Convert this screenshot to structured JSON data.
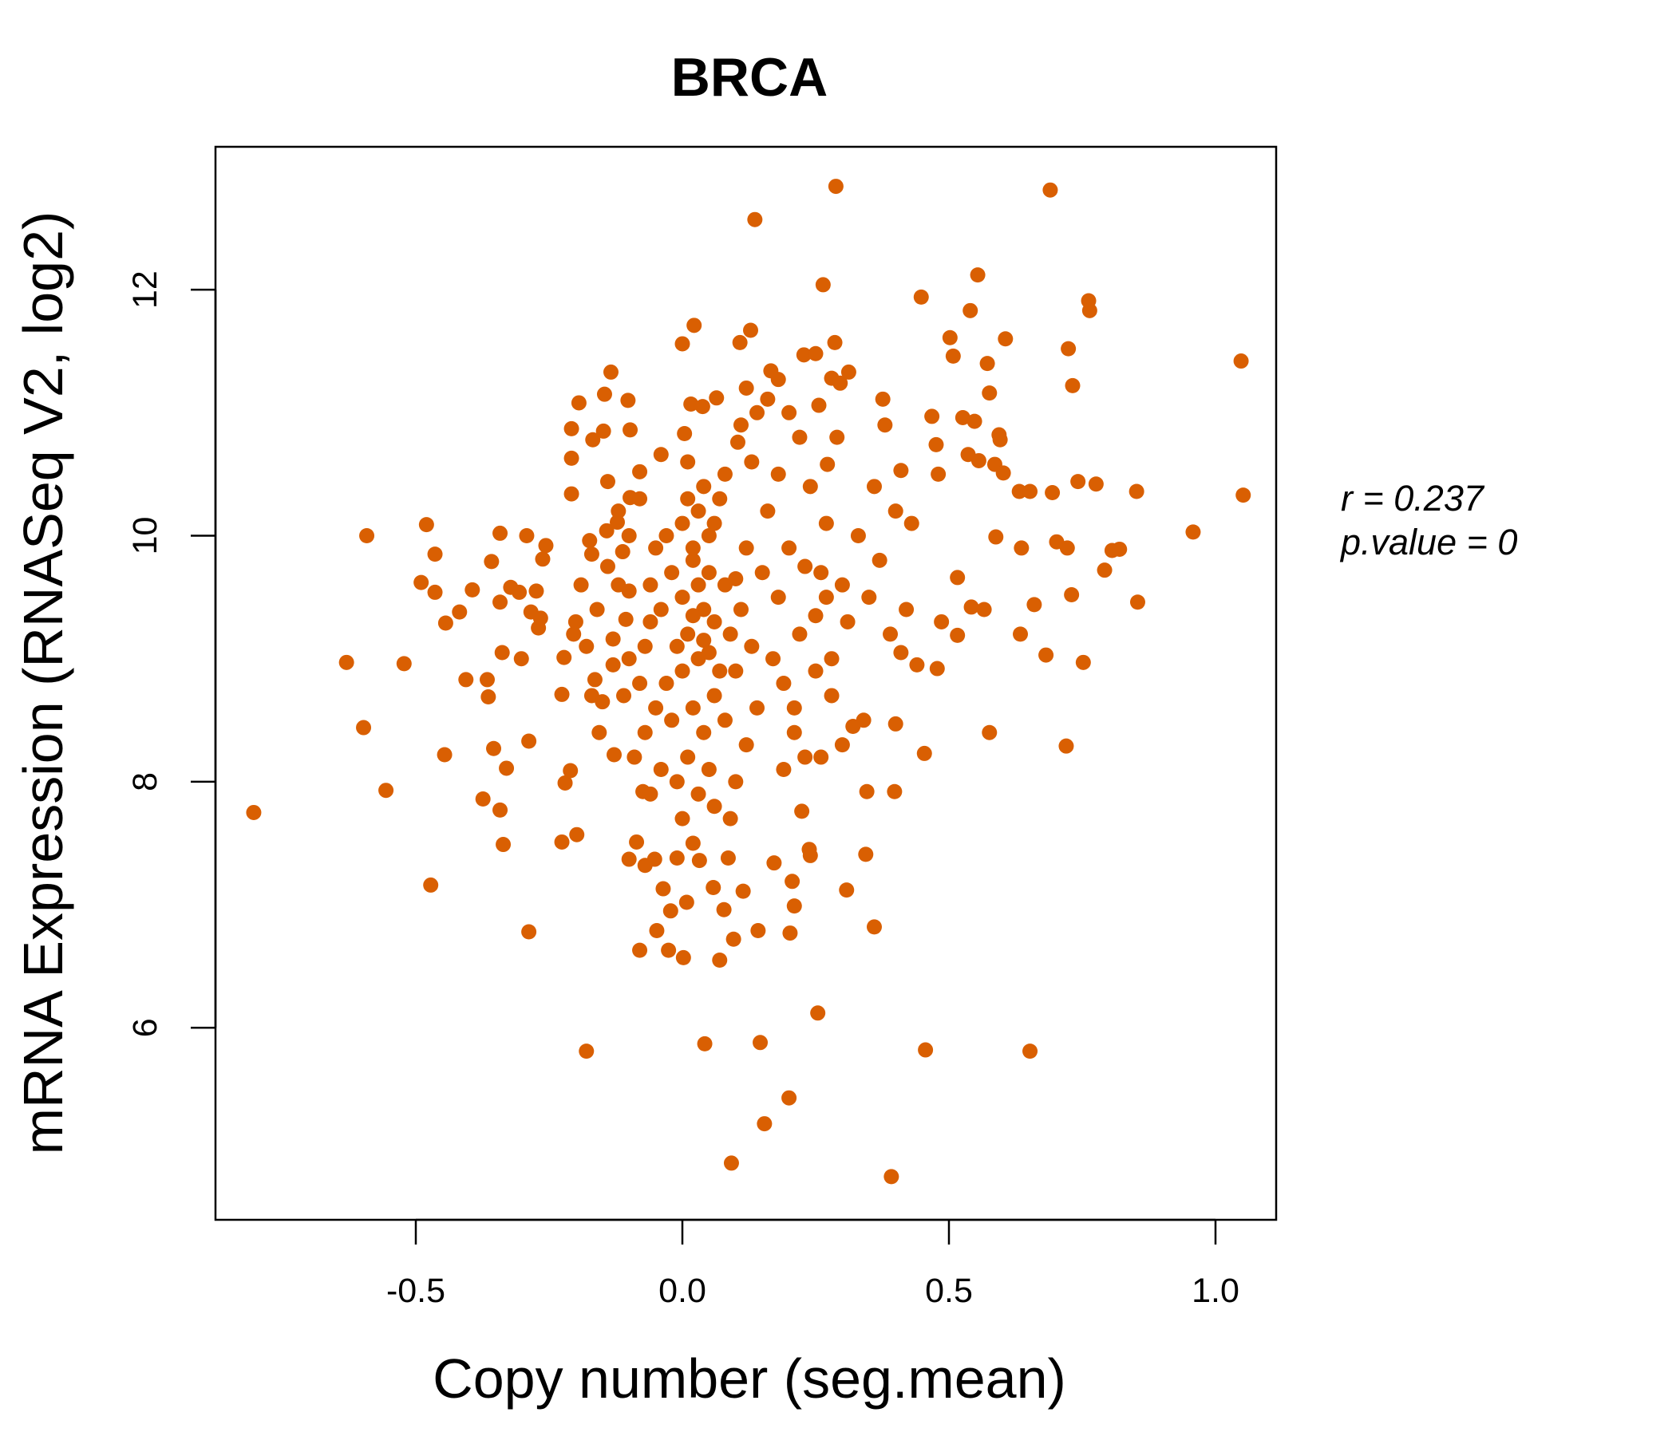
{
  "chart_data": {
    "type": "scatter",
    "title": "BRCA",
    "xlabel": "Copy number (seg.mean)",
    "ylabel": "mRNA Expression (RNASeq V2, log2)",
    "xlim": [
      -0.87,
      1.13
    ],
    "ylim": [
      4.65,
      13.0
    ],
    "xticks": [
      -0.5,
      0.0,
      0.5,
      1.0
    ],
    "xtick_labels": [
      "-0.5",
      "0.0",
      "0.5",
      "1.0"
    ],
    "yticks": [
      6,
      8,
      10,
      12
    ],
    "ytick_labels": [
      "6",
      "8",
      "10",
      "12"
    ],
    "grid": false,
    "point_color": "#D95F02",
    "title_color": "#D95F02",
    "annotations": {
      "r_label": "r = 0.237",
      "p_label": "p.value = 0"
    },
    "points": [
      [
        -0.804,
        7.75
      ],
      [
        -0.63,
        8.97
      ],
      [
        -0.598,
        8.44
      ],
      [
        -0.592,
        10.0
      ],
      [
        -0.556,
        7.93
      ],
      [
        -0.522,
        8.96
      ],
      [
        -0.49,
        9.62
      ],
      [
        -0.48,
        10.09
      ],
      [
        -0.472,
        7.16
      ],
      [
        -0.464,
        9.85
      ],
      [
        -0.464,
        9.54
      ],
      [
        -0.446,
        8.22
      ],
      [
        -0.444,
        9.29
      ],
      [
        -0.418,
        9.38
      ],
      [
        -0.406,
        8.83
      ],
      [
        -0.394,
        9.56
      ],
      [
        -0.374,
        7.86
      ],
      [
        -0.366,
        8.83
      ],
      [
        -0.364,
        8.69
      ],
      [
        -0.358,
        9.79
      ],
      [
        -0.354,
        8.27
      ],
      [
        -0.342,
        10.02
      ],
      [
        -0.342,
        9.46
      ],
      [
        -0.342,
        7.77
      ],
      [
        -0.338,
        9.05
      ],
      [
        -0.336,
        7.49
      ],
      [
        -0.33,
        8.11
      ],
      [
        -0.322,
        9.58
      ],
      [
        -0.306,
        9.54
      ],
      [
        -0.302,
        9.0
      ],
      [
        -0.292,
        10.0
      ],
      [
        -0.288,
        8.33
      ],
      [
        -0.288,
        6.78
      ],
      [
        -0.284,
        9.38
      ],
      [
        -0.274,
        9.55
      ],
      [
        -0.27,
        9.25
      ],
      [
        -0.266,
        9.33
      ],
      [
        -0.262,
        9.81
      ],
      [
        -0.256,
        9.92
      ],
      [
        -0.226,
        8.71
      ],
      [
        -0.226,
        7.51
      ],
      [
        -0.222,
        9.01
      ],
      [
        -0.22,
        7.99
      ],
      [
        -0.21,
        8.09
      ],
      [
        -0.208,
        10.87
      ],
      [
        -0.208,
        10.34
      ],
      [
        -0.208,
        10.63
      ],
      [
        -0.204,
        9.2
      ],
      [
        -0.198,
        7.57
      ],
      [
        -0.194,
        11.08
      ],
      [
        -0.19,
        9.6
      ],
      [
        -0.18,
        5.81
      ],
      [
        -0.174,
        9.96
      ],
      [
        -0.17,
        8.7
      ],
      [
        -0.168,
        10.78
      ],
      [
        -0.164,
        8.83
      ],
      [
        -0.156,
        8.4
      ],
      [
        -0.148,
        10.85
      ],
      [
        -0.146,
        11.15
      ],
      [
        -0.142,
        10.04
      ],
      [
        -0.14,
        10.44
      ],
      [
        -0.134,
        11.33
      ],
      [
        -0.13,
        9.16
      ],
      [
        -0.128,
        8.22
      ],
      [
        -0.122,
        10.11
      ],
      [
        -0.112,
        9.87
      ],
      [
        -0.106,
        9.32
      ],
      [
        -0.102,
        11.1
      ],
      [
        -0.1,
        7.37
      ],
      [
        -0.098,
        10.86
      ],
      [
        -0.098,
        10.31
      ],
      [
        -0.086,
        7.51
      ],
      [
        -0.08,
        10.52
      ],
      [
        -0.08,
        6.63
      ],
      [
        -0.074,
        7.92
      ],
      [
        -0.07,
        7.32
      ],
      [
        -0.052,
        7.37
      ],
      [
        -0.048,
        6.79
      ],
      [
        -0.04,
        10.66
      ],
      [
        -0.036,
        7.13
      ],
      [
        -0.026,
        6.63
      ],
      [
        -0.022,
        6.95
      ],
      [
        -0.01,
        7.38
      ],
      [
        0.0,
        11.56
      ],
      [
        0.002,
        6.57
      ],
      [
        0.004,
        10.83
      ],
      [
        0.008,
        7.02
      ],
      [
        0.016,
        11.07
      ],
      [
        0.022,
        11.71
      ],
      [
        0.032,
        7.36
      ],
      [
        0.038,
        11.05
      ],
      [
        0.042,
        5.87
      ],
      [
        0.058,
        7.14
      ],
      [
        0.064,
        11.12
      ],
      [
        0.07,
        6.55
      ],
      [
        0.078,
        6.96
      ],
      [
        0.086,
        7.38
      ],
      [
        0.092,
        4.9
      ],
      [
        0.096,
        6.72
      ],
      [
        0.104,
        10.76
      ],
      [
        0.108,
        11.57
      ],
      [
        0.114,
        7.11
      ],
      [
        0.12,
        11.2
      ],
      [
        0.128,
        11.67
      ],
      [
        0.136,
        12.57
      ],
      [
        0.142,
        6.79
      ],
      [
        0.146,
        5.88
      ],
      [
        0.154,
        5.22
      ],
      [
        0.16,
        11.11
      ],
      [
        0.166,
        11.34
      ],
      [
        0.172,
        7.34
      ],
      [
        0.18,
        11.27
      ],
      [
        0.2,
        5.43
      ],
      [
        0.202,
        6.77
      ],
      [
        0.206,
        7.19
      ],
      [
        0.21,
        6.99
      ],
      [
        0.224,
        7.76
      ],
      [
        0.228,
        11.47
      ],
      [
        0.238,
        7.45
      ],
      [
        0.25,
        11.48
      ],
      [
        0.254,
        6.12
      ],
      [
        0.256,
        11.06
      ],
      [
        0.264,
        12.04
      ],
      [
        0.272,
        10.58
      ],
      [
        0.28,
        11.28
      ],
      [
        0.286,
        11.57
      ],
      [
        0.288,
        12.84
      ],
      [
        0.296,
        11.24
      ],
      [
        0.308,
        7.12
      ],
      [
        0.312,
        11.33
      ],
      [
        0.344,
        7.41
      ],
      [
        0.346,
        7.92
      ],
      [
        0.36,
        6.82
      ],
      [
        0.376,
        11.11
      ],
      [
        0.392,
        4.79
      ],
      [
        0.398,
        7.92
      ],
      [
        0.4,
        8.47
      ],
      [
        0.41,
        10.53
      ],
      [
        0.448,
        11.94
      ],
      [
        0.454,
        8.23
      ],
      [
        0.456,
        5.82
      ],
      [
        0.468,
        10.97
      ],
      [
        0.476,
        10.74
      ],
      [
        0.478,
        8.92
      ],
      [
        0.48,
        10.5
      ],
      [
        0.486,
        9.3
      ],
      [
        0.502,
        11.61
      ],
      [
        0.508,
        11.46
      ],
      [
        0.516,
        9.19
      ],
      [
        0.516,
        9.66
      ],
      [
        0.526,
        10.96
      ],
      [
        0.536,
        10.66
      ],
      [
        0.54,
        11.83
      ],
      [
        0.542,
        9.42
      ],
      [
        0.548,
        10.93
      ],
      [
        0.554,
        12.12
      ],
      [
        0.556,
        10.61
      ],
      [
        0.566,
        9.4
      ],
      [
        0.572,
        11.4
      ],
      [
        0.576,
        11.16
      ],
      [
        0.576,
        8.4
      ],
      [
        0.586,
        10.58
      ],
      [
        0.588,
        9.99
      ],
      [
        0.594,
        10.82
      ],
      [
        0.596,
        10.78
      ],
      [
        0.602,
        10.51
      ],
      [
        0.606,
        11.6
      ],
      [
        0.632,
        10.36
      ],
      [
        0.634,
        9.2
      ],
      [
        0.636,
        9.9
      ],
      [
        0.652,
        10.36
      ],
      [
        0.652,
        5.81
      ],
      [
        0.66,
        9.44
      ],
      [
        0.682,
        9.03
      ],
      [
        0.69,
        12.81
      ],
      [
        0.694,
        10.35
      ],
      [
        0.702,
        9.95
      ],
      [
        0.72,
        8.29
      ],
      [
        0.722,
        9.9
      ],
      [
        0.724,
        11.52
      ],
      [
        0.73,
        9.52
      ],
      [
        0.732,
        11.22
      ],
      [
        0.742,
        10.44
      ],
      [
        0.752,
        8.97
      ],
      [
        0.762,
        11.91
      ],
      [
        0.764,
        11.83
      ],
      [
        0.776,
        10.42
      ],
      [
        0.792,
        9.72
      ],
      [
        0.806,
        9.88
      ],
      [
        0.82,
        9.89
      ],
      [
        0.852,
        10.36
      ],
      [
        0.854,
        9.46
      ],
      [
        0.958,
        10.03
      ],
      [
        1.048,
        11.42
      ],
      [
        1.052,
        10.33
      ],
      [
        0.0,
        9.5
      ],
      [
        0.01,
        9.2
      ],
      [
        0.02,
        9.8
      ],
      [
        0.03,
        9.0
      ],
      [
        0.04,
        9.4
      ],
      [
        0.05,
        10.0
      ],
      [
        0.06,
        9.3
      ],
      [
        0.07,
        8.9
      ],
      [
        -0.01,
        9.1
      ],
      [
        -0.02,
        9.7
      ],
      [
        -0.03,
        8.8
      ],
      [
        0.0,
        10.1
      ],
      [
        0.02,
        8.6
      ],
      [
        0.04,
        8.4
      ],
      [
        0.06,
        8.7
      ],
      [
        0.08,
        9.6
      ],
      [
        0.09,
        9.2
      ],
      [
        0.1,
        8.9
      ],
      [
        0.01,
        10.3
      ],
      [
        0.03,
        10.2
      ],
      [
        -0.04,
        9.4
      ],
      [
        -0.05,
        9.9
      ],
      [
        0.05,
        9.7
      ],
      [
        0.07,
        10.3
      ],
      [
        0.08,
        8.5
      ],
      [
        0.11,
        9.4
      ],
      [
        0.12,
        9.9
      ],
      [
        0.02,
        9.35
      ],
      [
        0.03,
        9.6
      ],
      [
        0.0,
        8.9
      ],
      [
        -0.02,
        8.5
      ],
      [
        0.01,
        8.2
      ],
      [
        0.05,
        8.1
      ],
      [
        0.03,
        7.9
      ],
      [
        0.0,
        7.7
      ],
      [
        0.02,
        7.5
      ],
      [
        0.06,
        7.8
      ],
      [
        -0.01,
        8.0
      ],
      [
        0.04,
        9.15
      ],
      [
        0.05,
        9.05
      ],
      [
        0.02,
        9.9
      ],
      [
        0.06,
        10.1
      ],
      [
        0.04,
        10.4
      ],
      [
        0.01,
        10.6
      ],
      [
        0.08,
        10.5
      ],
      [
        -0.03,
        10.0
      ],
      [
        -0.06,
        9.6
      ],
      [
        -0.07,
        9.1
      ],
      [
        -0.08,
        8.8
      ],
      [
        -0.06,
        9.3
      ],
      [
        0.1,
        9.65
      ],
      [
        0.13,
        9.1
      ],
      [
        0.14,
        8.6
      ],
      [
        0.15,
        9.7
      ],
      [
        0.16,
        10.2
      ],
      [
        0.13,
        10.6
      ],
      [
        0.12,
        8.3
      ],
      [
        0.1,
        8.0
      ],
      [
        0.09,
        7.7
      ],
      [
        0.11,
        10.9
      ],
      [
        0.14,
        11.0
      ],
      [
        0.18,
        9.5
      ],
      [
        0.2,
        9.9
      ],
      [
        0.22,
        9.2
      ],
      [
        0.24,
        10.4
      ],
      [
        0.26,
        9.7
      ],
      [
        0.28,
        9.0
      ],
      [
        0.3,
        9.6
      ],
      [
        0.19,
        8.8
      ],
      [
        0.21,
        8.4
      ],
      [
        0.23,
        8.2
      ],
      [
        0.25,
        8.9
      ],
      [
        0.27,
        10.1
      ],
      [
        0.29,
        10.8
      ],
      [
        0.31,
        9.3
      ],
      [
        0.33,
        10.0
      ],
      [
        0.35,
        9.5
      ],
      [
        0.37,
        9.8
      ],
      [
        0.39,
        9.2
      ],
      [
        0.34,
        8.5
      ],
      [
        0.32,
        8.45
      ],
      [
        0.36,
        10.4
      ],
      [
        0.38,
        10.9
      ],
      [
        0.4,
        10.2
      ],
      [
        0.42,
        9.4
      ],
      [
        0.44,
        8.95
      ],
      [
        0.41,
        9.05
      ],
      [
        0.43,
        10.1
      ],
      [
        0.22,
        10.8
      ],
      [
        0.2,
        11.0
      ],
      [
        0.18,
        10.5
      ],
      [
        0.17,
        9.0
      ],
      [
        0.19,
        8.1
      ],
      [
        0.24,
        7.4
      ],
      [
        0.21,
        8.6
      ],
      [
        0.26,
        8.2
      ],
      [
        0.28,
        8.7
      ],
      [
        0.3,
        8.3
      ],
      [
        0.25,
        9.35
      ],
      [
        0.23,
        9.75
      ],
      [
        0.27,
        9.5
      ],
      [
        -0.1,
        9.0
      ],
      [
        -0.12,
        9.6
      ],
      [
        -0.14,
        9.75
      ],
      [
        -0.16,
        9.4
      ],
      [
        -0.18,
        9.1
      ],
      [
        -0.2,
        9.3
      ],
      [
        -0.11,
        8.7
      ],
      [
        -0.09,
        8.2
      ],
      [
        -0.13,
        8.95
      ],
      [
        -0.15,
        8.65
      ],
      [
        -0.17,
        9.85
      ],
      [
        -0.08,
        10.3
      ],
      [
        -0.1,
        9.55
      ],
      [
        -0.05,
        8.6
      ],
      [
        -0.04,
        8.1
      ],
      [
        -0.06,
        7.9
      ],
      [
        -0.07,
        8.4
      ],
      [
        -0.1,
        10.0
      ],
      [
        -0.12,
        10.2
      ]
    ]
  }
}
